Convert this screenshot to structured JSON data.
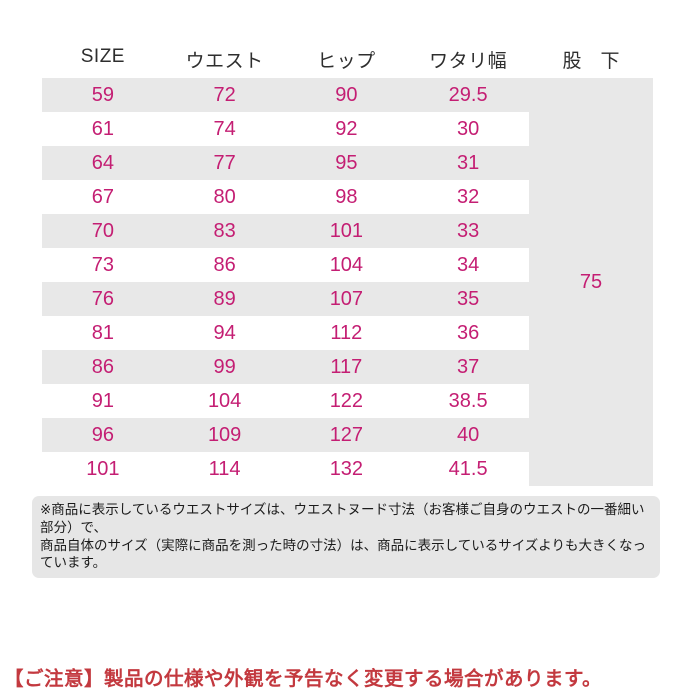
{
  "table": {
    "headers": [
      "SIZE",
      "ウエスト",
      "ヒップ",
      "ワタリ幅",
      "股　下"
    ],
    "rows": [
      [
        "59",
        "72",
        "90",
        "29.5"
      ],
      [
        "61",
        "74",
        "92",
        "30"
      ],
      [
        "64",
        "77",
        "95",
        "31"
      ],
      [
        "67",
        "80",
        "98",
        "32"
      ],
      [
        "70",
        "83",
        "101",
        "33"
      ],
      [
        "73",
        "86",
        "104",
        "34"
      ],
      [
        "76",
        "89",
        "107",
        "35"
      ],
      [
        "81",
        "94",
        "112",
        "36"
      ],
      [
        "86",
        "99",
        "117",
        "37"
      ],
      [
        "91",
        "104",
        "122",
        "38.5"
      ],
      [
        "96",
        "109",
        "127",
        "40"
      ],
      [
        "101",
        "114",
        "132",
        "41.5"
      ]
    ],
    "inseam_value": "75"
  },
  "note": {
    "line1": "※商品に表示しているウエストサイズは、ウエストヌード寸法（お客様ご自身のウエストの一番細い部分）で、",
    "line2": "商品自体のサイズ（実際に商品を測った時の寸法）は、商品に表示しているサイズよりも大きくなっています。"
  },
  "caution_text": "【ご注意】製品の仕様や外観を予告なく変更する場合があります。",
  "colors": {
    "value_magenta": "#c41e73",
    "stripe_gray": "#e8e8e8",
    "note_bg": "#e6e6e6",
    "caution_red": "#c3393f"
  },
  "chart_data": {
    "type": "table",
    "title": "サイズ表 (size chart)",
    "columns": [
      "SIZE",
      "ウエスト",
      "ヒップ",
      "ワタリ幅",
      "股下"
    ],
    "rows": [
      [
        59,
        72,
        90,
        29.5
      ],
      [
        61,
        74,
        92,
        30
      ],
      [
        64,
        77,
        95,
        31
      ],
      [
        67,
        80,
        98,
        32
      ],
      [
        70,
        83,
        101,
        33
      ],
      [
        73,
        86,
        104,
        34
      ],
      [
        76,
        89,
        107,
        35
      ],
      [
        81,
        94,
        112,
        36
      ],
      [
        86,
        99,
        117,
        37
      ],
      [
        91,
        104,
        122,
        38.5
      ],
      [
        96,
        109,
        127,
        40
      ],
      [
        101,
        114,
        132,
        41.5
      ]
    ],
    "merged_column": {
      "name": "股下",
      "value": 75,
      "spans_all_rows": true
    },
    "layout_hints": {
      "striped_rows": true,
      "first_row_gray": true,
      "value_color": "#c41e73"
    }
  }
}
